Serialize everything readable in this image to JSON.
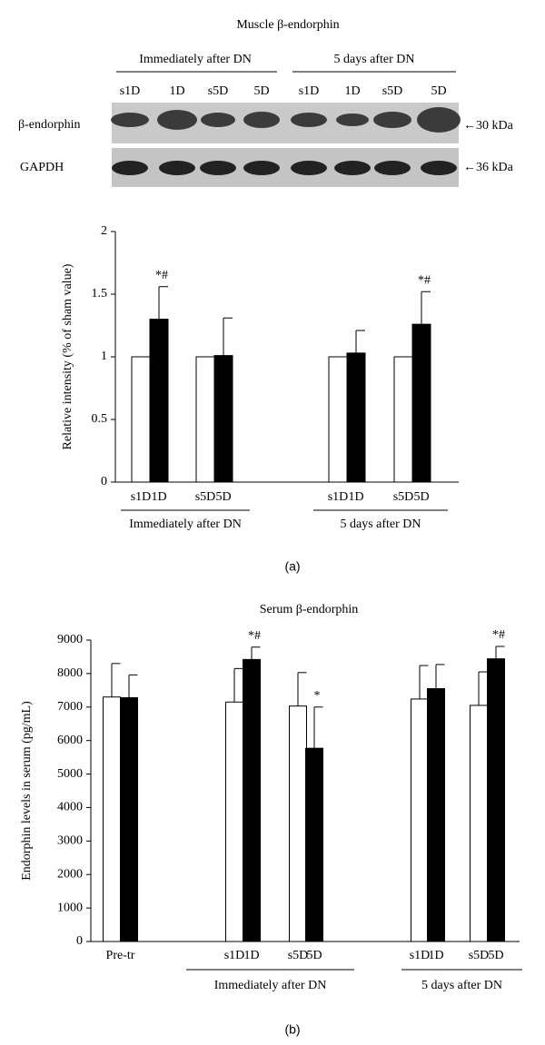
{
  "blot": {
    "title": "Muscle β-endorphin",
    "groups": [
      "Immediately after DN",
      "5 days after DN"
    ],
    "lanes": [
      "s1D",
      "1D",
      "s5D",
      "5D",
      "s1D",
      "1D",
      "s5D",
      "5D"
    ],
    "rows": [
      "β-endorphin",
      "GAPDH"
    ],
    "markers": [
      "←30 kDa",
      "←36 kDa"
    ]
  },
  "chart_data": [
    {
      "type": "bar",
      "ylabel": "Relative intensity (% of sham value)",
      "panel_label": "(a)",
      "ylim": [
        0,
        2
      ],
      "yticks": [
        0,
        0.5,
        1,
        1.5,
        2
      ],
      "colors": [
        "#ffffff",
        "#000000"
      ],
      "groups": [
        {
          "name": "Immediately after DN",
          "categories": [
            "s1D",
            "1D",
            "s5D",
            "5D"
          ],
          "values": [
            1,
            1.3,
            1,
            1.01
          ],
          "errors": [
            null,
            0.26,
            null,
            0.3
          ],
          "annotations": [
            null,
            "*#",
            null,
            null
          ]
        },
        {
          "name": "5 days after DN",
          "categories": [
            "s1D",
            "1D",
            "s5D",
            "5D"
          ],
          "values": [
            1,
            1.03,
            1,
            1.26
          ],
          "errors": [
            null,
            0.18,
            null,
            0.26
          ],
          "annotations": [
            null,
            null,
            null,
            "*#"
          ]
        }
      ]
    },
    {
      "type": "bar",
      "title": "Serum β-endorphin",
      "ylabel": "Endorphin levels in serum (pg/mL)",
      "panel_label": "(b)",
      "ylim": [
        0,
        9000
      ],
      "yticks": [
        0,
        1000,
        2000,
        3000,
        4000,
        5000,
        6000,
        7000,
        8000,
        9000
      ],
      "colors": [
        "#ffffff",
        "#000000"
      ],
      "groups": [
        {
          "name": "Pre-tr",
          "categories": [
            null,
            null
          ],
          "values": [
            7300,
            7280
          ],
          "errors": [
            1000,
            680
          ],
          "annotations": [
            null,
            null
          ]
        },
        {
          "name": "Immediately after DN",
          "categories": [
            "s1D",
            "1D",
            "s5D",
            "5D"
          ],
          "values": [
            7150,
            8420,
            7030,
            5770
          ],
          "errors": [
            1000,
            370,
            1000,
            1230
          ],
          "annotations": [
            null,
            "*#",
            null,
            "*"
          ]
        },
        {
          "name": "5 days after DN",
          "categories": [
            "s1D",
            "1D",
            "s5D",
            "5D"
          ],
          "values": [
            7240,
            7550,
            7050,
            8440
          ],
          "errors": [
            1000,
            720,
            1000,
            370
          ],
          "annotations": [
            null,
            null,
            null,
            "*#"
          ]
        }
      ]
    }
  ]
}
